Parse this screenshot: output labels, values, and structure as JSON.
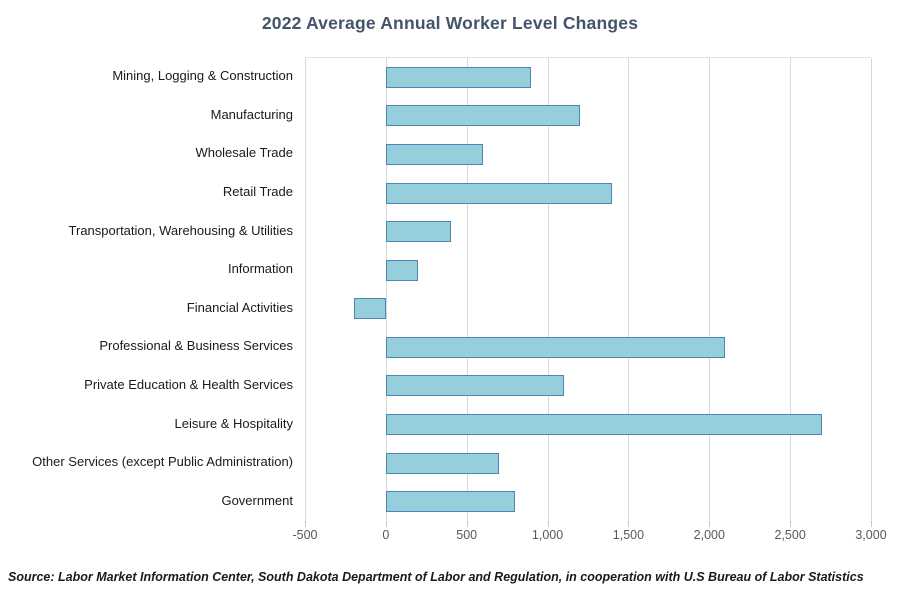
{
  "title": "2022 Average Annual Worker Level Changes",
  "source_note": "Source: Labor Market Information Center, South Dakota Department of Labor and Regulation, in cooperation with U.S Bureau of Labor Statistics",
  "colors": {
    "bar_fill": "#96CEDC",
    "bar_border": "#4A86B8",
    "gridline": "#D9D9D9",
    "axis_tick": "#C6C6C6",
    "title_text": "#44546A",
    "category_text": "#1A1A1A",
    "tick_text": "#595959",
    "source_text": "#1A1A1A"
  },
  "chart_data": {
    "type": "bar",
    "orientation": "horizontal",
    "title": "2022 Average Annual Worker Level Changes",
    "xlabel": "",
    "ylabel": "",
    "categories": [
      "Mining, Logging & Construction",
      "Manufacturing",
      "Wholesale Trade",
      "Retail Trade",
      "Transportation, Warehousing & Utilities",
      "Information",
      "Financial Activities",
      "Professional & Business Services",
      "Private Education & Health Services",
      "Leisure & Hospitality",
      "Other Services (except Public Administration)",
      "Government"
    ],
    "values": [
      900,
      1200,
      600,
      1400,
      400,
      200,
      -200,
      2100,
      1100,
      2700,
      700,
      800
    ],
    "xlim": [
      -500,
      3000
    ],
    "xticks": [
      -500,
      0,
      500,
      1000,
      1500,
      2000,
      2500,
      3000
    ],
    "xtick_labels": [
      "-500",
      "0",
      "500",
      "1,000",
      "1,500",
      "2,000",
      "2,500",
      "3,000"
    ],
    "grid": "vertical-only",
    "legend": "none"
  }
}
